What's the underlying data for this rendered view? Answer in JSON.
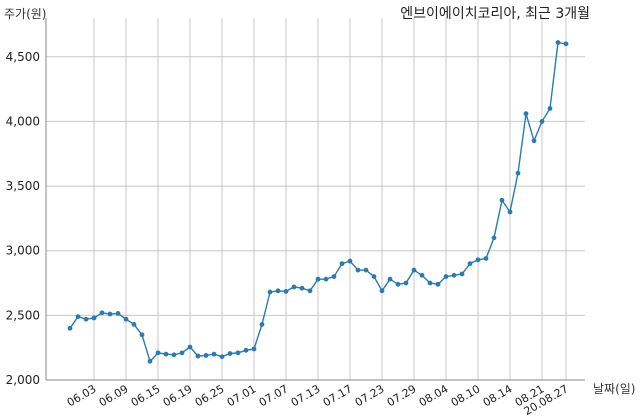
{
  "chart_data": {
    "type": "line",
    "title": "엔브이에이치코리아, 최근 3개월",
    "ylabel": "주가(원)",
    "xlabel": "날짜(일)",
    "ylim": [
      2000,
      4800
    ],
    "yticks": [
      2000,
      2500,
      3000,
      3500,
      4000,
      4500
    ],
    "ytick_labels": [
      "2,000",
      "2,500",
      "3,000",
      "3,500",
      "4,000",
      "4,500"
    ],
    "grid": true,
    "series_color": "#2b7bb0",
    "series": [
      {
        "values": [
          2400,
          2490,
          2470,
          2480,
          2520,
          2510,
          2515,
          2470,
          2430,
          2350,
          2145,
          2210,
          2200,
          2195,
          2210,
          2255,
          2185,
          2190,
          2200,
          2180,
          2205,
          2210,
          2230,
          2240,
          2430,
          2680,
          2690,
          2685,
          2720,
          2710,
          2690,
          2780,
          2780,
          2800,
          2900,
          2920,
          2850,
          2850,
          2800,
          2690,
          2780,
          2740,
          2750,
          2850,
          2810,
          2750,
          2740,
          2800,
          2810,
          2820,
          2900,
          2930,
          2940,
          3100,
          3390,
          3300,
          3600,
          4060,
          3850,
          4000,
          4100,
          4610,
          4600
        ]
      }
    ],
    "xtick_labels": [
      {
        "label": "06.03",
        "index": 3
      },
      {
        "label": "06.09",
        "index": 7
      },
      {
        "label": "06.15",
        "index": 11
      },
      {
        "label": "06.19",
        "index": 15
      },
      {
        "label": "06.25",
        "index": 19
      },
      {
        "label": "07.01",
        "index": 23
      },
      {
        "label": "07.07",
        "index": 27
      },
      {
        "label": "07.13",
        "index": 31
      },
      {
        "label": "07.17",
        "index": 35
      },
      {
        "label": "07.23",
        "index": 39
      },
      {
        "label": "07.29",
        "index": 43
      },
      {
        "label": "08.04",
        "index": 47
      },
      {
        "label": "08.10",
        "index": 51
      },
      {
        "label": "08.14",
        "index": 55
      },
      {
        "label": "08.21",
        "index": 59
      },
      {
        "label": "20.08.27",
        "index": 62
      }
    ]
  }
}
